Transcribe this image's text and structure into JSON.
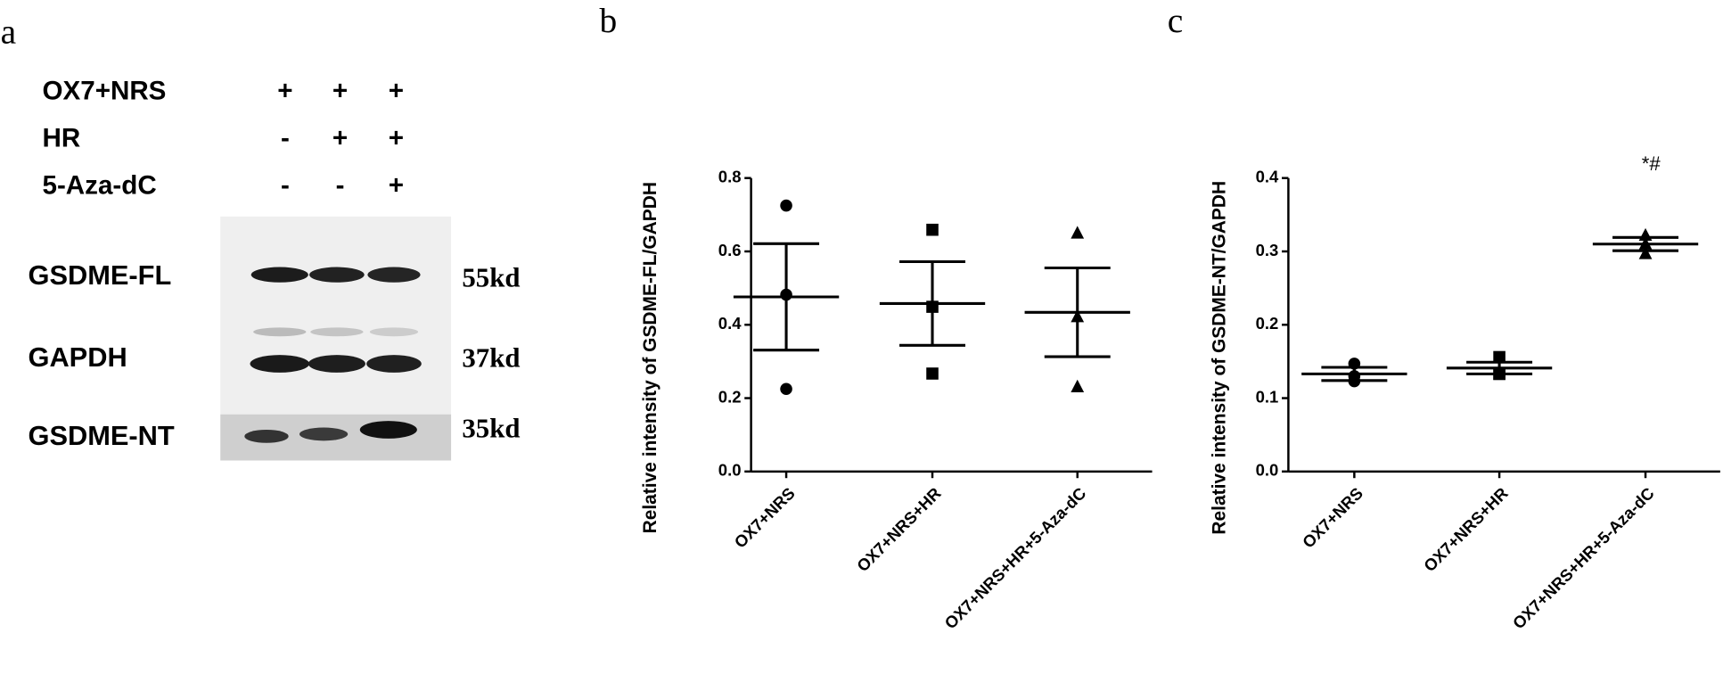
{
  "panel_labels": [
    "a",
    "b",
    "c"
  ],
  "blot": {
    "treatments": [
      {
        "name": "OX7+NRS",
        "signs": [
          "+",
          "+",
          "+"
        ]
      },
      {
        "name": "HR",
        "signs": [
          "-",
          "+",
          "+"
        ]
      },
      {
        "name": "5-Aza-dC",
        "signs": [
          "-",
          "-",
          "+"
        ]
      }
    ],
    "bands": [
      {
        "name": "GSDME-FL",
        "size": "55kd"
      },
      {
        "name": "GAPDH",
        "size": "37kd"
      },
      {
        "name": "GSDME-NT",
        "size": "35kd"
      }
    ]
  },
  "chart_data": [
    {
      "type": "dotplot",
      "ylabel": "Relative intensity of GSDME-FL/GAPDH",
      "categories": [
        "OX7+NRS",
        "OX7+NRS+HR",
        "OX7+NRS+HR+5-Aza-dC"
      ],
      "markers": [
        "circle",
        "square",
        "triangle"
      ],
      "color": "#000000",
      "points": [
        [
          0.725,
          0.482,
          0.225
        ],
        [
          0.659,
          0.449,
          0.267
        ],
        [
          0.65,
          0.422,
          0.231
        ]
      ],
      "mean": [
        0.476,
        0.458,
        0.434
      ],
      "error": [
        0.145,
        0.114,
        0.121
      ],
      "ylim": [
        0,
        0.8
      ],
      "yticks": [
        {
          "value": 0,
          "label": "0.0"
        },
        0.2,
        0.4,
        0.6,
        0.8
      ]
    },
    {
      "type": "dotplot",
      "ylabel": "Relative intensity of GSDME-NT/GAPDH",
      "categories": [
        "OX7+NRS",
        "OX7+NRS+HR",
        "OX7+NRS+HR+5-Aza-dC"
      ],
      "markers": [
        "circle",
        "square",
        "triangle"
      ],
      "color": "#000000",
      "points": [
        [
          0.147,
          0.13,
          0.123
        ],
        [
          0.156,
          0.133,
          0.133
        ],
        [
          0.322,
          0.31,
          0.297
        ]
      ],
      "mean": [
        0.133,
        0.141,
        0.31
      ],
      "error": [
        0.009,
        0.008,
        0.009
      ],
      "ylim": [
        0,
        0.4
      ],
      "yticks": [
        {
          "value": 0,
          "label": "0.0"
        },
        0.1,
        0.2,
        0.3,
        0.4
      ],
      "annotation": "*#"
    }
  ]
}
